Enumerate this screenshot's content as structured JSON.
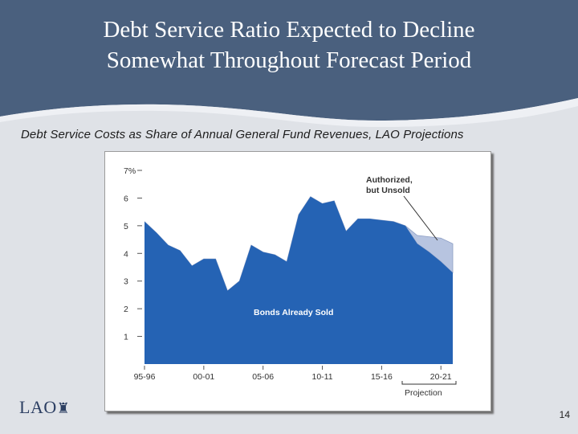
{
  "slide": {
    "title_line1": "Debt Service Ratio Expected to Decline",
    "title_line2": "Somewhat Throughout Forecast Period",
    "subtitle": "Debt Service Costs as Share of Annual General Fund Revenues, LAO Projections",
    "logo_text": "LAO",
    "logo_mark": "♜",
    "page_number": "14"
  },
  "colors": {
    "header": "#4a607e",
    "sold_fill": "#2563b4",
    "unsold_fill": "#b7c4e0",
    "axis_text": "#333333"
  },
  "chart_data": {
    "type": "area",
    "x": [
      "95-96",
      "96-97",
      "97-98",
      "98-99",
      "99-00",
      "00-01",
      "01-02",
      "02-03",
      "03-04",
      "04-05",
      "05-06",
      "06-07",
      "07-08",
      "08-09",
      "09-10",
      "10-11",
      "11-12",
      "12-13",
      "13-14",
      "14-15",
      "15-16",
      "16-17",
      "17-18",
      "18-19",
      "19-20",
      "20-21",
      "21-22"
    ],
    "x_tick_labels": [
      "95-96",
      "00-01",
      "05-06",
      "10-11",
      "15-16",
      "20-21"
    ],
    "x_tick_indices": [
      0,
      5,
      10,
      15,
      20,
      25
    ],
    "y_ticks": [
      1,
      2,
      3,
      4,
      5,
      6,
      7
    ],
    "y_tick_labels": [
      "1",
      "2",
      "3",
      "4",
      "5",
      "6",
      "7%"
    ],
    "ylim": [
      0,
      7
    ],
    "series": [
      {
        "name": "Bonds Already Sold",
        "values": [
          5.15,
          4.75,
          4.3,
          4.1,
          3.55,
          3.8,
          3.8,
          2.65,
          3.0,
          4.3,
          4.05,
          3.95,
          3.7,
          5.4,
          6.05,
          5.8,
          5.9,
          4.8,
          5.25,
          5.25,
          5.2,
          5.15,
          5.0,
          4.35,
          4.05,
          3.7,
          3.3
        ]
      },
      {
        "name": "Authorized, but Unsold",
        "values": [
          0,
          0,
          0,
          0,
          0,
          0,
          0,
          0,
          0,
          0,
          0,
          0,
          0,
          0,
          0,
          0,
          0,
          0,
          0,
          0,
          0,
          0,
          0,
          0.3,
          0.55,
          0.85,
          1.05
        ]
      }
    ],
    "annotations": {
      "authorized_line1": "Authorized,",
      "authorized_line2": "but Unsold",
      "sold_label": "Bonds Already Sold",
      "projection_label": "Projection"
    },
    "projection_start_index": 22,
    "grid": false
  }
}
